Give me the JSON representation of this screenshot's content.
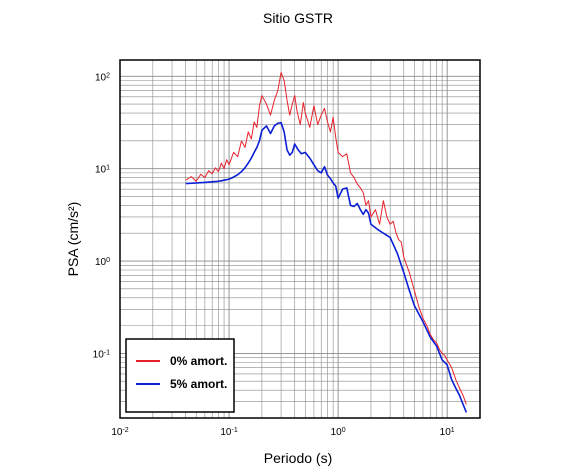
{
  "chart_data": {
    "type": "line",
    "title": "Sitio GSTR",
    "xlabel": "Periodo (s)",
    "ylabel": "PSA (cm/s²)",
    "xscale": "log",
    "yscale": "log",
    "xlim": [
      0.01,
      20
    ],
    "ylim": [
      0.02,
      150
    ],
    "grid": true,
    "legend_position": "bottom-left",
    "x_ticks": [
      {
        "base": "10",
        "exp": "-2"
      },
      {
        "base": "10",
        "exp": "-1"
      },
      {
        "base": "10",
        "exp": "0"
      },
      {
        "base": "10",
        "exp": "1"
      }
    ],
    "y_ticks": [
      {
        "base": "10",
        "exp": "-1"
      },
      {
        "base": "10",
        "exp": "0"
      },
      {
        "base": "10",
        "exp": "1"
      },
      {
        "base": "10",
        "exp": "2"
      }
    ],
    "series": [
      {
        "name": "0% amort.",
        "color": "#e8212b",
        "x": [
          0.04,
          0.045,
          0.05,
          0.055,
          0.06,
          0.065,
          0.07,
          0.075,
          0.08,
          0.085,
          0.09,
          0.095,
          0.1,
          0.11,
          0.12,
          0.13,
          0.14,
          0.15,
          0.16,
          0.17,
          0.18,
          0.19,
          0.2,
          0.22,
          0.24,
          0.26,
          0.28,
          0.3,
          0.32,
          0.34,
          0.36,
          0.38,
          0.4,
          0.42,
          0.45,
          0.48,
          0.5,
          0.55,
          0.6,
          0.65,
          0.7,
          0.75,
          0.8,
          0.85,
          0.9,
          0.95,
          1.0,
          1.1,
          1.2,
          1.3,
          1.4,
          1.5,
          1.6,
          1.7,
          1.8,
          1.9,
          2.0,
          2.2,
          2.4,
          2.6,
          2.8,
          3.0,
          3.2,
          3.4,
          3.6,
          3.8,
          4.0,
          4.5,
          5.0,
          5.5,
          6.0,
          6.5,
          7.0,
          7.5,
          8.0,
          8.5,
          9.0,
          9.5,
          10.0,
          11.0,
          12.0,
          13.0,
          14.0,
          15.0
        ],
        "y": [
          7.5,
          8.2,
          7.3,
          8.7,
          8.0,
          9.5,
          8.8,
          10.2,
          9.3,
          11.5,
          10.0,
          12.5,
          11.0,
          15.0,
          13.5,
          20.0,
          17.0,
          25.0,
          21.0,
          32.0,
          28.0,
          48.0,
          62.0,
          50.0,
          38.0,
          55.0,
          70.0,
          110.0,
          90.0,
          55.0,
          38.0,
          50.0,
          62.0,
          42.0,
          30.0,
          52.0,
          40.0,
          28.0,
          48.0,
          30.0,
          38.0,
          45.0,
          32.0,
          25.0,
          36.0,
          22.0,
          15.0,
          13.5,
          14.5,
          9.0,
          8.0,
          6.8,
          6.2,
          5.5,
          4.0,
          4.5,
          3.0,
          3.6,
          2.5,
          4.5,
          3.0,
          2.5,
          2.7,
          2.0,
          1.7,
          1.6,
          1.1,
          0.75,
          0.48,
          0.32,
          0.24,
          0.2,
          0.16,
          0.14,
          0.13,
          0.11,
          0.1,
          0.095,
          0.085,
          0.07,
          0.052,
          0.042,
          0.035,
          0.028
        ]
      },
      {
        "name": "5% amort.",
        "color": "#0b1fd6",
        "x": [
          0.04,
          0.05,
          0.06,
          0.07,
          0.08,
          0.09,
          0.1,
          0.11,
          0.12,
          0.13,
          0.14,
          0.15,
          0.16,
          0.17,
          0.18,
          0.19,
          0.2,
          0.22,
          0.24,
          0.26,
          0.28,
          0.3,
          0.32,
          0.34,
          0.36,
          0.38,
          0.4,
          0.43,
          0.46,
          0.5,
          0.55,
          0.6,
          0.65,
          0.7,
          0.75,
          0.8,
          0.85,
          0.9,
          0.95,
          1.0,
          1.1,
          1.2,
          1.3,
          1.4,
          1.5,
          1.6,
          1.7,
          1.8,
          1.9,
          2.0,
          2.3,
          2.6,
          3.0,
          3.5,
          4.0,
          4.5,
          5.0,
          6.0,
          7.0,
          8.0,
          9.0,
          10.0,
          11.0,
          12.0,
          13.0,
          14.0,
          15.0
        ],
        "y": [
          6.9,
          7.0,
          7.1,
          7.2,
          7.3,
          7.5,
          7.7,
          8.1,
          8.6,
          9.3,
          10.2,
          11.5,
          13.0,
          15.0,
          17.0,
          20.0,
          26.0,
          29.0,
          24.0,
          29.0,
          31.0,
          31.5,
          25.0,
          16.0,
          14.0,
          15.0,
          18.5,
          16.0,
          14.5,
          15.0,
          13.0,
          11.0,
          9.5,
          9.0,
          10.5,
          8.5,
          7.8,
          7.0,
          6.5,
          4.8,
          6.0,
          6.2,
          4.0,
          3.9,
          4.2,
          3.6,
          3.2,
          3.6,
          3.3,
          2.5,
          2.2,
          2.0,
          1.8,
          1.2,
          0.75,
          0.48,
          0.33,
          0.22,
          0.15,
          0.12,
          0.085,
          0.075,
          0.052,
          0.042,
          0.035,
          0.028,
          0.023
        ]
      }
    ]
  }
}
